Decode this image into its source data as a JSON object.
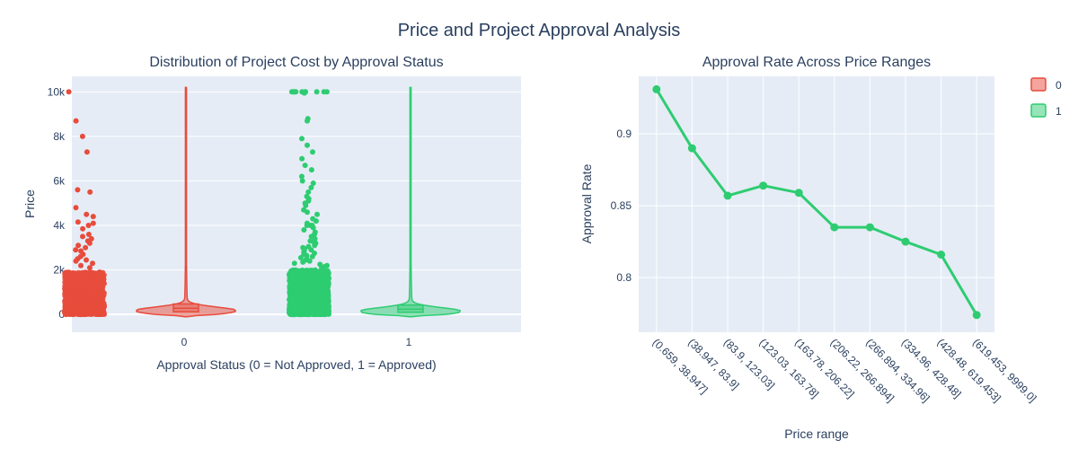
{
  "title": "Price and Project Approval Analysis",
  "colors": {
    "plot_bg": "#E5ECF6",
    "grid": "#ffffff",
    "text": "#2a3f5f",
    "not_approved": "#E74C3C",
    "approved": "#2ECC71"
  },
  "legend": {
    "position": "top-right",
    "items": [
      {
        "label": "0",
        "color": "#E74C3C"
      },
      {
        "label": "1",
        "color": "#2ECC71"
      }
    ]
  },
  "chart_data": [
    {
      "type": "violin",
      "title": "Distribution of Project Cost by Approval Status",
      "xlabel": "Approval Status (0 = Not Approved, 1 = Approved)",
      "ylabel": "Price",
      "ylim": [
        -800,
        10700
      ],
      "yticks": [
        0,
        2000,
        4000,
        6000,
        8000,
        10000
      ],
      "ytick_labels": [
        "0",
        "2k",
        "4k",
        "6k",
        "8k",
        "10k"
      ],
      "categories": [
        "0",
        "1"
      ],
      "series": [
        {
          "name": "0",
          "color": "#E74C3C",
          "min": -100,
          "max": 10200,
          "q1": 120,
          "median": 280,
          "q3": 470,
          "outliers": [
            10000,
            8700,
            8000,
            7300,
            5600,
            5500,
            4800,
            4500,
            4400,
            4150,
            4100,
            4000,
            3850,
            3600,
            3500,
            3400,
            3300,
            3200,
            3100,
            3000,
            2900,
            2850,
            2700,
            2600,
            2500,
            2450,
            2400,
            2300,
            2200,
            2100
          ]
        },
        {
          "name": "1",
          "color": "#2ECC71",
          "min": -100,
          "max": 10200,
          "q1": 100,
          "median": 240,
          "q3": 420,
          "outliers": [
            10000,
            10000,
            10000,
            10000,
            10000,
            10000,
            10000,
            10000,
            10000,
            10000,
            10000,
            9950,
            8800,
            8700,
            7900,
            7600,
            7300,
            7000,
            6700,
            6500,
            6200,
            6000,
            5900,
            5700,
            5500,
            5300,
            5200,
            5100,
            5000,
            4900,
            4700,
            4600,
            4500,
            4300,
            4200,
            4100,
            4000,
            4000,
            4000,
            3900,
            3800,
            3700,
            3600,
            3500,
            3400,
            3300,
            3250,
            3200,
            3150,
            3100,
            3050,
            3000,
            2950,
            2900,
            2850,
            2800,
            2750,
            2700,
            2650,
            2600,
            2550,
            2500,
            2450,
            2400,
            2350,
            2300,
            2250,
            2200,
            2150,
            2100
          ]
        }
      ]
    },
    {
      "type": "line",
      "title": "Approval Rate Across Price Ranges",
      "xlabel": "Price range",
      "ylabel": "Approval Rate",
      "ylim": [
        0.762,
        0.94
      ],
      "yticks": [
        0.8,
        0.85,
        0.9
      ],
      "ytick_labels": [
        "0.8",
        "0.85",
        "0.9"
      ],
      "categories": [
        "(0.659, 38.947]",
        "(38.947, 83.9]",
        "(83.9, 123.03]",
        "(123.03, 163.78]",
        "(163.78, 206.22]",
        "(206.22, 266.894]",
        "(266.894, 334.96]",
        "(334.96, 428.48]",
        "(428.48, 619.453]",
        "(619.453, 9999.0]"
      ],
      "values": [
        0.931,
        0.89,
        0.857,
        0.864,
        0.859,
        0.835,
        0.835,
        0.825,
        0.816,
        0.774
      ],
      "color": "#2ECC71"
    }
  ]
}
